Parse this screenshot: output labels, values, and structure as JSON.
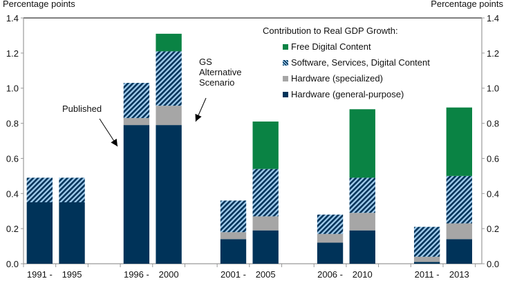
{
  "chart_data": {
    "type": "bar",
    "stacked": true,
    "ylabel_left": "Percentage points",
    "ylabel_right": "Percentage points",
    "ylim": [
      0,
      1.4
    ],
    "yticks": [
      "0.0",
      "0.2",
      "0.4",
      "0.6",
      "0.8",
      "1.0",
      "1.2",
      "1.4"
    ],
    "grid": false,
    "legend_title": "Contribution to Real GDP Growth:",
    "legend_position": "top-right",
    "bar_pairs": [
      {
        "label": "1991 -",
        "period": "1991-1995",
        "scenario": "Published"
      },
      {
        "label": "1995",
        "period": "1991-1995",
        "scenario": "GS Alternative Scenario"
      },
      {
        "label": "1996 -",
        "period": "1996-2000",
        "scenario": "Published"
      },
      {
        "label": "2000",
        "period": "1996-2000",
        "scenario": "GS Alternative Scenario"
      },
      {
        "label": "2001 -",
        "period": "2001-2005",
        "scenario": "Published"
      },
      {
        "label": "2005",
        "period": "2001-2005",
        "scenario": "GS Alternative Scenario"
      },
      {
        "label": "2006 -",
        "period": "2006-2010",
        "scenario": "Published"
      },
      {
        "label": "2010",
        "period": "2006-2010",
        "scenario": "GS Alternative Scenario"
      },
      {
        "label": "2011 -",
        "period": "2011-2013",
        "scenario": "Published"
      },
      {
        "label": "2013",
        "period": "2011-2013",
        "scenario": "GS Alternative Scenario"
      }
    ],
    "series": [
      {
        "name": "Hardware (general-purpose)",
        "color": "#003359",
        "pattern": "solid",
        "values": [
          0.35,
          0.35,
          0.79,
          0.79,
          0.14,
          0.19,
          0.12,
          0.19,
          0.01,
          0.14
        ]
      },
      {
        "name": "Hardware (specialized)",
        "color": "#a6a6a6",
        "pattern": "solid",
        "values": [
          0.0,
          0.0,
          0.04,
          0.11,
          0.04,
          0.08,
          0.05,
          0.1,
          0.03,
          0.09
        ]
      },
      {
        "name": "Software, Services, Digital Content",
        "color": "#003359",
        "pattern": "hatch",
        "values": [
          0.14,
          0.14,
          0.2,
          0.31,
          0.18,
          0.27,
          0.11,
          0.2,
          0.17,
          0.27
        ]
      },
      {
        "name": "Free Digital Content",
        "color": "#0a8344",
        "pattern": "solid",
        "values": [
          0.0,
          0.0,
          0.0,
          0.1,
          0.0,
          0.27,
          0.0,
          0.39,
          0.0,
          0.39
        ]
      }
    ],
    "annotations": [
      "Published",
      "GS Alternative Scenario"
    ]
  },
  "legend": {
    "title": "Contribution to Real GDP Growth:",
    "items": [
      {
        "label": "Free Digital Content",
        "swatch": "green"
      },
      {
        "label": "Software, Services, Digital Content",
        "swatch": "hatch"
      },
      {
        "label": "Hardware (specialized)",
        "swatch": "gray"
      },
      {
        "label": "Hardware (general-purpose)",
        "swatch": "navy"
      }
    ]
  },
  "annotations": {
    "published": "Published",
    "alt_line1": "GS",
    "alt_line2": "Alternative",
    "alt_line3": "Scenario"
  },
  "axis": {
    "left_title": "Percentage points",
    "right_title": "Percentage points"
  }
}
